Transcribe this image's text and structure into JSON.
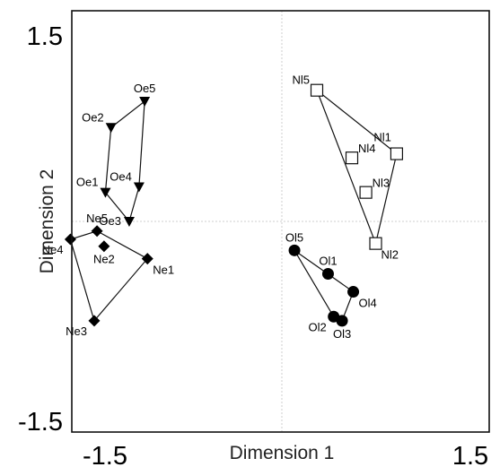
{
  "chart_data": {
    "type": "scatter",
    "title": "",
    "xlabel": "Dimension 1",
    "ylabel": "Dimension 2",
    "xlim": [
      -1.5,
      1.5
    ],
    "ylim": [
      -1.5,
      1.5
    ],
    "xticks": [
      "-1.5",
      "1.5"
    ],
    "yticks": [
      "1.5",
      "-1.5"
    ],
    "grid": false,
    "reference_lines": {
      "x": 0,
      "y": 0
    },
    "groups": [
      {
        "marker": "triangle-down",
        "fill": "#000000",
        "hull": [
          "Oe5",
          "Oe4",
          "Oe3",
          "Oe1",
          "Oe2"
        ],
        "points": [
          {
            "label": "Oe5",
            "x": -0.98,
            "y": 0.87,
            "label_side": "above"
          },
          {
            "label": "Oe2",
            "x": -1.22,
            "y": 0.68,
            "label_side": "left-up"
          },
          {
            "label": "Oe1",
            "x": -1.26,
            "y": 0.21,
            "label_side": "left-up"
          },
          {
            "label": "Oe4",
            "x": -1.02,
            "y": 0.25,
            "label_side": "left-up"
          },
          {
            "label": "Oe3",
            "x": -1.09,
            "y": 0.0,
            "label_side": "left"
          }
        ]
      },
      {
        "marker": "diamond",
        "fill": "#000000",
        "hull": [
          "Ne5",
          "Ne1",
          "Ne3",
          "Ne4"
        ],
        "points": [
          {
            "label": "Ne5",
            "x": -1.32,
            "y": -0.07,
            "label_side": "above"
          },
          {
            "label": "Ne4",
            "x": -1.51,
            "y": -0.13,
            "label_side": "below-left"
          },
          {
            "label": "Ne2",
            "x": -1.27,
            "y": -0.18,
            "label_side": "below"
          },
          {
            "label": "Ne1",
            "x": -0.96,
            "y": -0.27,
            "label_side": "below-right"
          },
          {
            "label": "Ne3",
            "x": -1.34,
            "y": -0.72,
            "label_side": "below-left"
          }
        ]
      },
      {
        "marker": "square-open",
        "fill": "#ffffff",
        "hull": [
          "Nl5",
          "Nl1",
          "Nl2"
        ],
        "points": [
          {
            "label": "Nl5",
            "x": 0.25,
            "y": 0.95,
            "label_side": "left-up"
          },
          {
            "label": "Nl1",
            "x": 0.82,
            "y": 0.49,
            "label_side": "above-left"
          },
          {
            "label": "Nl4",
            "x": 0.5,
            "y": 0.46,
            "label_side": "right-up"
          },
          {
            "label": "Nl3",
            "x": 0.6,
            "y": 0.21,
            "label_side": "right-up"
          },
          {
            "label": "Nl2",
            "x": 0.67,
            "y": -0.16,
            "label_side": "below-right"
          }
        ]
      },
      {
        "marker": "circle",
        "fill": "#000000",
        "hull": [
          "Ol5",
          "Ol4",
          "Ol3",
          "Ol2"
        ],
        "points": [
          {
            "label": "Ol5",
            "x": 0.09,
            "y": -0.21,
            "label_side": "above"
          },
          {
            "label": "Ol1",
            "x": 0.33,
            "y": -0.38,
            "label_side": "above"
          },
          {
            "label": "Ol4",
            "x": 0.51,
            "y": -0.51,
            "label_side": "below-right"
          },
          {
            "label": "Ol2",
            "x": 0.37,
            "y": -0.69,
            "label_side": "below-left"
          },
          {
            "label": "Ol3",
            "x": 0.43,
            "y": -0.72,
            "label_side": "below"
          }
        ]
      }
    ]
  }
}
